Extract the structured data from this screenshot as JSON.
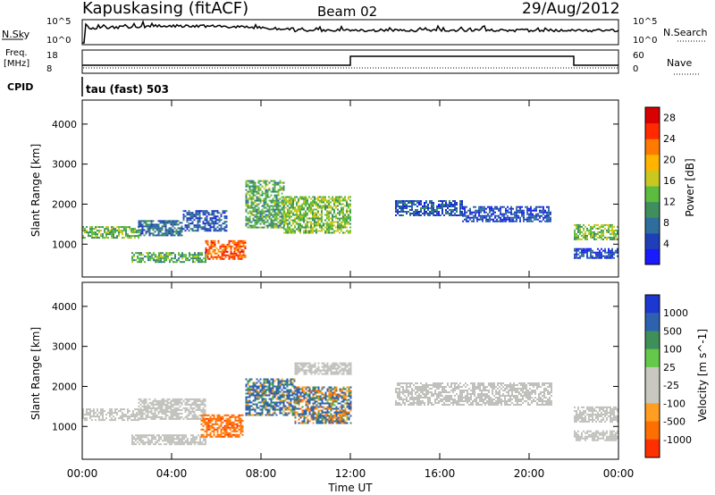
{
  "header": {
    "station": "Kapuskasing (fitACF)",
    "beam": "Beam 02",
    "date": "29/Aug/2012"
  },
  "status_panels": {
    "nsky_label": "N.Sky",
    "nsearch_label": "N.Search",
    "noise_ticks_left": [
      "10^5",
      "10^0"
    ],
    "noise_ticks_right": [
      "10^5",
      "10^0"
    ],
    "freq_label": "Freq.",
    "freq_unit": "[MHz]",
    "freq_ticks": [
      "18",
      "8"
    ],
    "nave_label": "Nave",
    "nave_ticks": [
      "60",
      "0"
    ],
    "cpid_label": "CPID",
    "cpid_value": "tau (fast) 503"
  },
  "colors": {
    "power": [
      "#1a1aff",
      "#1f3fb8",
      "#2e6e9e",
      "#3f8f5e",
      "#5cbc3e",
      "#c8c820",
      "#ffb400",
      "#ff7a00",
      "#ff2a00",
      "#d80000"
    ],
    "velocity": [
      "#1c38d0",
      "#2c62b0",
      "#3f8f5a",
      "#64c84a",
      "#c8c8c0",
      "#c8c8c0",
      "#ff9e20",
      "#ff6e00",
      "#ff3000",
      "#e00000"
    ],
    "ground_scatter": "#c0c0bc"
  },
  "chart_data": [
    {
      "type": "heatmap",
      "title": "Power",
      "xlabel": "",
      "ylabel": "Slant Range [km]",
      "colorbar_label": "Power [dB]",
      "colorbar_ticks": [
        "28",
        "24",
        "20",
        "16",
        "12",
        "8",
        "4"
      ],
      "colorbar_range": [
        0,
        30
      ],
      "x_range_hours": [
        0,
        24
      ],
      "y_range_km": [
        180,
        4600
      ],
      "x_ticks": [
        0,
        4,
        8,
        12,
        16,
        20,
        24
      ],
      "y_ticks": [
        "1000",
        "2000",
        "3000",
        "4000"
      ],
      "y_tick_values": [
        1000,
        2000,
        3000,
        4000
      ],
      "regions": [
        {
          "t0": 0.0,
          "t1": 2.5,
          "r0": 1150,
          "r1": 1450,
          "level": 13
        },
        {
          "t0": 2.5,
          "t1": 4.5,
          "r0": 1200,
          "r1": 1600,
          "level": 8
        },
        {
          "t0": 4.5,
          "t1": 6.5,
          "r0": 1350,
          "r1": 1850,
          "level": 6
        },
        {
          "t0": 2.2,
          "t1": 5.5,
          "r0": 550,
          "r1": 800,
          "level": 12
        },
        {
          "t0": 5.5,
          "t1": 7.3,
          "r0": 650,
          "r1": 1100,
          "level": 24
        },
        {
          "t0": 7.3,
          "t1": 9.0,
          "r0": 1400,
          "r1": 2600,
          "level": 12
        },
        {
          "t0": 9.0,
          "t1": 12.0,
          "r0": 1300,
          "r1": 2200,
          "level": 14
        },
        {
          "t0": 14.0,
          "t1": 17.0,
          "r0": 1700,
          "r1": 2100,
          "level": 6
        },
        {
          "t0": 17.0,
          "t1": 21.0,
          "r0": 1550,
          "r1": 1950,
          "level": 5
        },
        {
          "t0": 22.0,
          "t1": 24.0,
          "r0": 1100,
          "r1": 1500,
          "level": 14
        },
        {
          "t0": 22.0,
          "t1": 24.0,
          "r0": 650,
          "r1": 900,
          "level": 5
        }
      ]
    },
    {
      "type": "heatmap",
      "title": "Velocity",
      "xlabel": "Time UT",
      "ylabel": "Slant Range [km]",
      "colorbar_label": "Velocity [m s^-1]",
      "colorbar_ticks": [
        "1000",
        "500",
        "100",
        "25",
        "-25",
        "-100",
        "-500",
        "-1000"
      ],
      "x_range_hours": [
        0,
        24
      ],
      "y_range_km": [
        180,
        4600
      ],
      "x_ticks": [
        0,
        4,
        8,
        12,
        16,
        20,
        24
      ],
      "x_tick_labels": [
        "00:00",
        "04:00",
        "08:00",
        "12:00",
        "16:00",
        "20:00",
        "00:00"
      ],
      "y_ticks": [
        "1000",
        "2000",
        "3000",
        "4000"
      ],
      "y_tick_values": [
        1000,
        2000,
        3000,
        4000
      ],
      "regions": [
        {
          "t0": 0.0,
          "t1": 2.5,
          "r0": 1150,
          "r1": 1450,
          "vel": "gs"
        },
        {
          "t0": 2.5,
          "t1": 5.5,
          "r0": 1200,
          "r1": 1700,
          "vel": "gs"
        },
        {
          "t0": 2.2,
          "t1": 5.5,
          "r0": 550,
          "r1": 800,
          "vel": "gs"
        },
        {
          "t0": 5.3,
          "t1": 7.2,
          "r0": 750,
          "r1": 1300,
          "vel": -300
        },
        {
          "t0": 7.3,
          "t1": 9.5,
          "r0": 1300,
          "r1": 2200,
          "vel": 150
        },
        {
          "t0": 9.5,
          "t1": 12.0,
          "r0": 1100,
          "r1": 2000,
          "vel": 80
        },
        {
          "t0": 9.5,
          "t1": 12.0,
          "r0": 2300,
          "r1": 2600,
          "vel": "gs"
        },
        {
          "t0": 14.0,
          "t1": 21.0,
          "r0": 1550,
          "r1": 2100,
          "vel": "gs"
        },
        {
          "t0": 22.0,
          "t1": 24.0,
          "r0": 1100,
          "r1": 1500,
          "vel": "gs"
        },
        {
          "t0": 22.0,
          "t1": 24.0,
          "r0": 650,
          "r1": 900,
          "vel": "gs"
        }
      ]
    }
  ],
  "frequency_trace": {
    "segments": [
      {
        "t0": 0,
        "t1": 12,
        "freq_level": "low"
      },
      {
        "t0": 12,
        "t1": 22,
        "freq_level": "high"
      },
      {
        "t0": 22,
        "t1": 24,
        "freq_level": "low"
      }
    ]
  }
}
